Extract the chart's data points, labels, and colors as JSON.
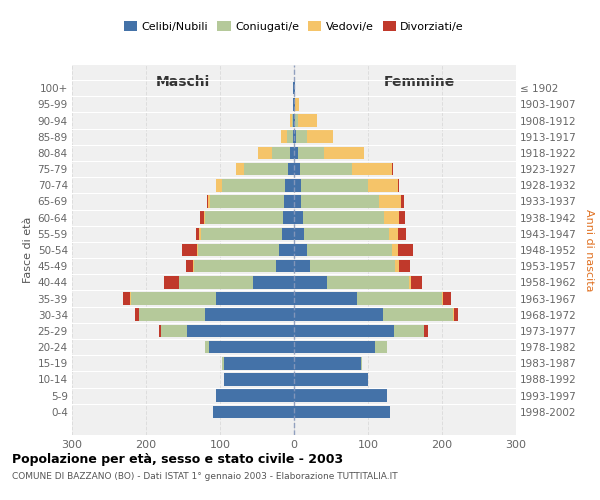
{
  "age_groups": [
    "0-4",
    "5-9",
    "10-14",
    "15-19",
    "20-24",
    "25-29",
    "30-34",
    "35-39",
    "40-44",
    "45-49",
    "50-54",
    "55-59",
    "60-64",
    "65-69",
    "70-74",
    "75-79",
    "80-84",
    "85-89",
    "90-94",
    "95-99",
    "100+"
  ],
  "birth_years": [
    "1998-2002",
    "1993-1997",
    "1988-1992",
    "1983-1987",
    "1978-1982",
    "1973-1977",
    "1968-1972",
    "1963-1967",
    "1958-1962",
    "1953-1957",
    "1948-1952",
    "1943-1947",
    "1938-1942",
    "1933-1937",
    "1928-1932",
    "1923-1927",
    "1918-1922",
    "1913-1917",
    "1908-1912",
    "1903-1907",
    "≤ 1902"
  ],
  "colors": {
    "celibi": "#4472a8",
    "coniugati": "#b5c99a",
    "vedovi": "#f5c469",
    "divorziati": "#c0392b"
  },
  "males": {
    "celibi": [
      110,
      105,
      95,
      95,
      115,
      145,
      120,
      105,
      55,
      25,
      20,
      16,
      15,
      13,
      12,
      8,
      5,
      2,
      1,
      1,
      1
    ],
    "coniugati": [
      0,
      0,
      0,
      2,
      5,
      35,
      90,
      115,
      100,
      110,
      110,
      110,
      105,
      100,
      85,
      60,
      25,
      8,
      2,
      0,
      0
    ],
    "vedovi": [
      0,
      0,
      0,
      0,
      0,
      0,
      0,
      1,
      1,
      1,
      1,
      2,
      2,
      3,
      8,
      10,
      18,
      8,
      3,
      1,
      0
    ],
    "divorziati": [
      0,
      0,
      0,
      0,
      0,
      2,
      5,
      10,
      20,
      10,
      20,
      5,
      5,
      1,
      1,
      1,
      0,
      0,
      0,
      0,
      0
    ]
  },
  "females": {
    "nubili": [
      130,
      125,
      100,
      90,
      110,
      135,
      120,
      85,
      45,
      22,
      18,
      14,
      12,
      10,
      10,
      8,
      5,
      3,
      2,
      1,
      1
    ],
    "coniugate": [
      0,
      0,
      0,
      2,
      15,
      40,
      95,
      115,
      110,
      115,
      115,
      115,
      110,
      105,
      90,
      70,
      35,
      15,
      4,
      1,
      0
    ],
    "vedove": [
      0,
      0,
      0,
      0,
      0,
      1,
      1,
      2,
      3,
      5,
      8,
      12,
      20,
      30,
      40,
      55,
      55,
      35,
      25,
      5,
      0
    ],
    "divorziate": [
      0,
      0,
      0,
      0,
      0,
      5,
      5,
      10,
      15,
      15,
      20,
      10,
      8,
      3,
      2,
      1,
      0,
      0,
      0,
      0,
      0
    ]
  },
  "xlim": 300,
  "title": "Popolazione per età, sesso e stato civile - 2003",
  "subtitle": "COMUNE DI BAZZANO (BO) - Dati ISTAT 1° gennaio 2003 - Elaborazione TUTTITALIA.IT",
  "ylabel_left": "Fasce di età",
  "ylabel_right": "Anni di nascita",
  "xlabel_left": "Maschi",
  "xlabel_right": "Femmine",
  "background_color": "#f0f0f0",
  "grid_color": "#dddddd"
}
